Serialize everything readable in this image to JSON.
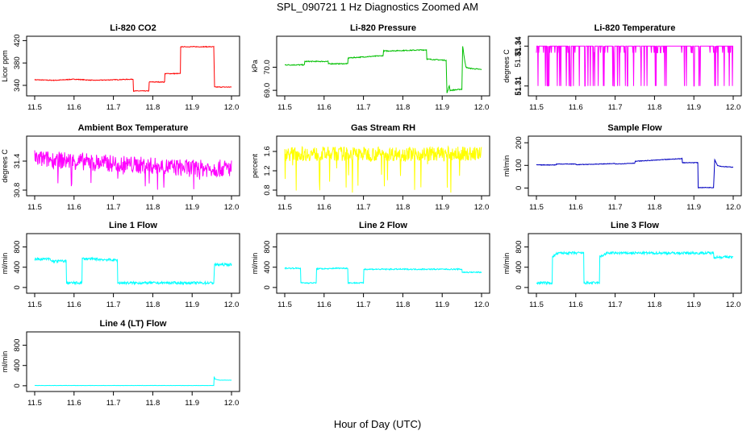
{
  "figure": {
    "title": "SPL_090721  1 Hz Diagnostics Zoomed AM",
    "xlabel": "Hour of Day (UTC)"
  },
  "chart_data": [
    {
      "type": "line",
      "title": "Li-820 CO2",
      "ylabel": "Licor ppm",
      "color": "#ff0000",
      "xlim": [
        11.5,
        12.0
      ],
      "ylim": [
        327,
        422
      ],
      "xticks": [
        11.5,
        11.6,
        11.7,
        11.8,
        11.9,
        12.0
      ],
      "yticks": [
        340,
        380,
        420
      ],
      "series": [
        {
          "x": [
            11.5,
            11.55,
            11.6,
            11.65,
            11.7,
            11.75,
            11.751,
            11.79,
            11.791,
            11.83,
            11.831,
            11.87,
            11.871,
            11.955,
            11.957,
            12.0
          ],
          "y": [
            350,
            349,
            351,
            349,
            350,
            351,
            330,
            330,
            346,
            346,
            361,
            361,
            409,
            409,
            337,
            337
          ],
          "noise": 0.6
        }
      ]
    },
    {
      "type": "line",
      "title": "Li-820 Pressure",
      "ylabel": "kPa",
      "color": "#00c000",
      "xlim": [
        11.5,
        12.0
      ],
      "ylim": [
        68.9,
        71.2
      ],
      "xticks": [
        11.5,
        11.6,
        11.7,
        11.8,
        11.9,
        12.0
      ],
      "yticks": [
        69.0,
        70.0
      ],
      "series": [
        {
          "x": [
            11.5,
            11.55,
            11.551,
            11.61,
            11.611,
            11.66,
            11.661,
            11.75,
            11.751,
            11.86,
            11.861,
            11.91,
            11.912,
            11.918,
            11.92,
            11.95,
            11.952,
            11.96,
            11.97,
            12.0
          ],
          "y": [
            70.1,
            70.1,
            70.25,
            70.25,
            70.15,
            70.15,
            70.4,
            70.5,
            70.7,
            70.75,
            70.35,
            70.3,
            68.85,
            69.2,
            69.0,
            69.05,
            70.9,
            70.0,
            69.95,
            69.9
          ],
          "noise": 0.02
        }
      ]
    },
    {
      "type": "line",
      "title": "Li-820 Temperature",
      "ylabel": "degrees C",
      "color": "#ff00ff",
      "xlim": [
        11.5,
        12.0
      ],
      "ylim": [
        51.305,
        51.345
      ],
      "xticks": [
        11.5,
        11.6,
        11.7,
        11.8,
        11.9,
        12.0
      ],
      "yticks": [
        51.31,
        51.34
      ],
      "extra_tick_labels": [
        "51.33",
        "51.31",
        "51.34"
      ],
      "series": [
        {
          "x": [
            11.5,
            12.0
          ],
          "y": [
            51.34,
            51.34
          ],
          "alt": [
            51.335,
            51.31
          ],
          "noise": 0
        }
      ]
    },
    {
      "type": "line",
      "title": "Ambient Box Temperature",
      "ylabel": "degrees C",
      "color": "#ff00ff",
      "xlim": [
        11.5,
        12.0
      ],
      "ylim": [
        30.75,
        31.85
      ],
      "xticks": [
        11.5,
        11.6,
        11.7,
        11.8,
        11.9,
        12.0
      ],
      "yticks": [
        30.8,
        31.4
      ],
      "series": [
        {
          "x": [
            11.5,
            11.6,
            11.7,
            11.8,
            11.9,
            12.0
          ],
          "y": [
            31.45,
            31.4,
            31.35,
            31.3,
            31.25,
            31.25
          ],
          "noise": 0.18
        }
      ]
    },
    {
      "type": "line",
      "title": "Gas Stream RH",
      "ylabel": "percent",
      "color": "#ffff00",
      "xlim": [
        11.5,
        12.0
      ],
      "ylim": [
        0.75,
        1.85
      ],
      "xticks": [
        11.5,
        11.6,
        11.7,
        11.8,
        11.9,
        12.0
      ],
      "yticks": [
        0.8,
        1.2,
        1.6
      ],
      "series": [
        {
          "x": [
            11.5,
            12.0
          ],
          "y": [
            1.55,
            1.55
          ],
          "noise": 0.15
        }
      ]
    },
    {
      "type": "line",
      "title": "Sample Flow",
      "ylabel": "ml/min",
      "color": "#0000c0",
      "xlim": [
        11.5,
        12.0
      ],
      "ylim": [
        -20,
        215
      ],
      "xticks": [
        11.5,
        11.6,
        11.7,
        11.8,
        11.9,
        12.0
      ],
      "yticks": [
        0,
        100,
        200
      ],
      "series": [
        {
          "x": [
            11.5,
            11.55,
            11.551,
            11.6,
            11.601,
            11.7,
            11.701,
            11.75,
            11.751,
            11.87,
            11.871,
            11.91,
            11.911,
            11.95,
            11.953,
            11.96,
            11.97,
            12.0
          ],
          "y": [
            102,
            102,
            106,
            106,
            103,
            108,
            106,
            110,
            118,
            130,
            112,
            112,
            2,
            2,
            125,
            100,
            95,
            92
          ],
          "noise": 1.2
        }
      ]
    },
    {
      "type": "line",
      "title": "Line 1 Flow",
      "ylabel": "ml/min",
      "color": "#00ffff",
      "xlim": [
        11.5,
        12.0
      ],
      "ylim": [
        -50,
        1000
      ],
      "xticks": [
        11.5,
        11.6,
        11.7,
        11.8,
        11.9,
        12.0
      ],
      "yticks": [
        0,
        400,
        800
      ],
      "series": [
        {
          "x": [
            11.5,
            11.54,
            11.541,
            11.58,
            11.581,
            11.62,
            11.621,
            11.71,
            11.711,
            11.955,
            11.957,
            12.0
          ],
          "y": [
            560,
            560,
            520,
            520,
            90,
            90,
            570,
            540,
            90,
            90,
            450,
            450
          ],
          "noise": 25
        }
      ]
    },
    {
      "type": "line",
      "title": "Line 2 Flow",
      "ylabel": "ml/min",
      "color": "#00ffff",
      "xlim": [
        11.5,
        12.0
      ],
      "ylim": [
        -50,
        1000
      ],
      "xticks": [
        11.5,
        11.6,
        11.7,
        11.8,
        11.9,
        12.0
      ],
      "yticks": [
        0,
        400,
        800
      ],
      "series": [
        {
          "x": [
            11.5,
            11.54,
            11.541,
            11.58,
            11.581,
            11.62,
            11.621,
            11.66,
            11.661,
            11.7,
            11.701,
            11.95,
            11.951,
            12.0
          ],
          "y": [
            380,
            380,
            90,
            90,
            370,
            370,
            380,
            380,
            90,
            90,
            360,
            360,
            300,
            300
          ],
          "noise": 12
        }
      ]
    },
    {
      "type": "line",
      "title": "Line 3 Flow",
      "ylabel": "ml/min",
      "color": "#00ffff",
      "xlim": [
        11.5,
        12.0
      ],
      "ylim": [
        -50,
        1000
      ],
      "xticks": [
        11.5,
        11.6,
        11.7,
        11.8,
        11.9,
        12.0
      ],
      "yticks": [
        0,
        400,
        800
      ],
      "series": [
        {
          "x": [
            11.5,
            11.54,
            11.541,
            11.55,
            11.56,
            11.62,
            11.621,
            11.66,
            11.661,
            11.67,
            11.68,
            11.95,
            11.951,
            12.0
          ],
          "y": [
            90,
            90,
            600,
            660,
            680,
            680,
            90,
            90,
            600,
            640,
            680,
            680,
            600,
            600
          ],
          "noise": 25
        }
      ]
    },
    {
      "type": "line",
      "title": "Line 4 (LT) Flow",
      "ylabel": "ml/min",
      "color": "#00ffff",
      "xlim": [
        11.5,
        12.0
      ],
      "ylim": [
        -50,
        1000
      ],
      "xticks": [
        11.5,
        11.6,
        11.7,
        11.8,
        11.9,
        12.0
      ],
      "yticks": [
        0,
        400,
        800
      ],
      "series": [
        {
          "x": [
            11.5,
            11.955,
            11.956,
            11.958,
            11.97,
            12.0
          ],
          "y": [
            5,
            5,
            180,
            130,
            110,
            110
          ],
          "noise": 2
        }
      ]
    }
  ]
}
